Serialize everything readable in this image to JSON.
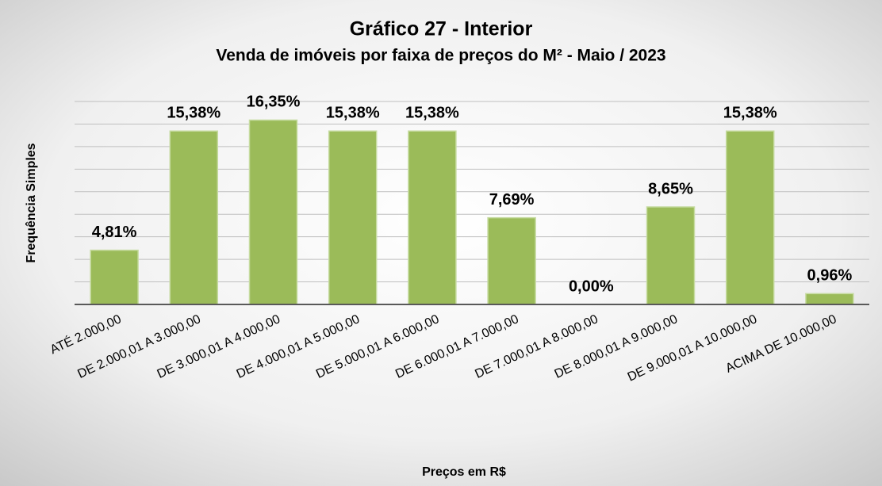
{
  "chart_data": {
    "type": "bar",
    "title": "Gráfico 27 - Interior",
    "subtitle": "Venda de imóveis por faixa de preços do M² - Maio / 2023",
    "x_label": "Preços em R$",
    "y_label": "Frequência Simples",
    "categories": [
      "ATÉ 2.000,00",
      "DE 2.000,01 A 3.000,00",
      "DE 3.000,01 A 4.000,00",
      "DE 4.000,01 A 5.000,00",
      "DE 5.000,01 A 6.000,00",
      "DE 6.000,01 A 7.000,00",
      "DE 7.000,01 A 8.000,00",
      "DE 8.000,01 A 9.000,00",
      "DE 9.000,01 A 10.000,00",
      "ACIMA DE 10.000,00"
    ],
    "values": [
      4.81,
      15.38,
      16.35,
      15.38,
      15.38,
      7.69,
      0.0,
      8.65,
      15.38,
      0.96
    ],
    "value_labels": [
      "4,81%",
      "15,38%",
      "16,35%",
      "15,38%",
      "15,38%",
      "7,69%",
      "0,00%",
      "8,65%",
      "15,38%",
      "0,96%"
    ],
    "color": "#9bbb59",
    "ylim": [
      0,
      18
    ],
    "yticks": [
      0,
      2,
      4,
      6,
      8,
      10,
      12,
      14,
      16,
      18
    ],
    "grid": true
  }
}
